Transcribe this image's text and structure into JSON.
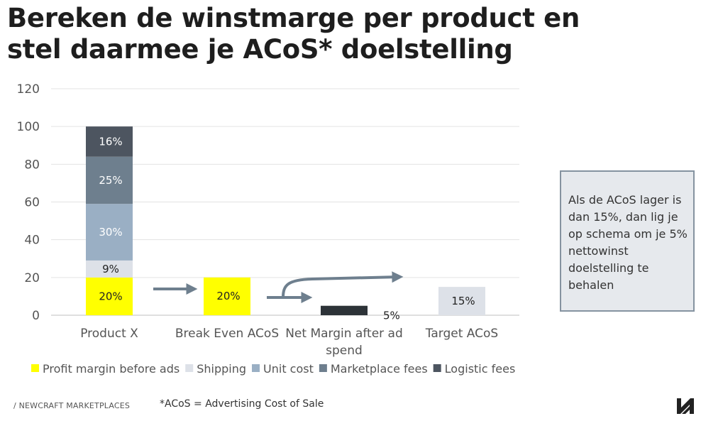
{
  "slide": {
    "title_line1": "Bereken de winstmarge per product en",
    "title_line2": "stel daarmee je ACoS* doelstelling",
    "note": "Als de ACoS lager is dan 15%, dan lig je op schema om je 5% nettowinst doelstelling te behalen",
    "footer_brand": "/ NEWCRAFT MARKETPLACES",
    "footnote": "*ACoS = Advertising Cost of Sale",
    "logo_icon": "newcraft-logo-icon"
  },
  "chart_data": {
    "type": "bar",
    "stacked": true,
    "categories": [
      "Product X",
      "Break Even ACoS",
      "Net Margin after ad spend",
      "Target ACoS"
    ],
    "category_lines": [
      [
        "Product X"
      ],
      [
        "Break Even ACoS"
      ],
      [
        "Net Margin after ad",
        "spend"
      ],
      [
        "Target ACoS"
      ]
    ],
    "y_ticks": [
      0,
      20,
      40,
      60,
      80,
      100,
      120
    ],
    "ylim": [
      0,
      120
    ],
    "grid": true,
    "legend_position": "bottom",
    "legend": [
      {
        "name": "Profit margin before ads",
        "color": "#ffff00"
      },
      {
        "name": "Shipping",
        "color": "#dde1e8"
      },
      {
        "name": "Unit cost",
        "color": "#9aafc4"
      },
      {
        "name": "Marketplace fees",
        "color": "#6e7f8e"
      },
      {
        "name": "Logistic fees",
        "color": "#4d5560"
      }
    ],
    "bars": [
      {
        "category": 0,
        "segments": [
          {
            "series": "Profit margin before ads",
            "value": 20,
            "label": "20%",
            "color": "#ffff00",
            "text_color": "#222222"
          },
          {
            "series": "Shipping",
            "value": 9,
            "label": "9%",
            "color": "#dde1e8",
            "text_color": "#222222"
          },
          {
            "series": "Unit cost",
            "value": 30,
            "label": "30%",
            "color": "#9aafc4",
            "text_color": "#ffffff"
          },
          {
            "series": "Marketplace fees",
            "value": 25,
            "label": "25%",
            "color": "#6e7f8e",
            "text_color": "#ffffff"
          },
          {
            "series": "Logistic fees",
            "value": 16,
            "label": "16%",
            "color": "#4d5560",
            "text_color": "#ffffff"
          }
        ]
      },
      {
        "category": 1,
        "segments": [
          {
            "series": "Break Even ACoS",
            "value": 20,
            "label": "20%",
            "color": "#ffff00",
            "text_color": "#222222",
            "label_pos": "upper"
          }
        ]
      },
      {
        "category": 2,
        "segments": [
          {
            "series": "Net Margin after ad spend",
            "value": 5,
            "label": "5%",
            "color": "#2d3338",
            "text_color": "#222222",
            "label_pos": "right"
          }
        ]
      },
      {
        "category": 3,
        "segments": [
          {
            "series": "Target ACoS",
            "value": 15,
            "label": "15%",
            "color": "#dde1e8",
            "text_color": "#222222"
          }
        ]
      }
    ],
    "arrow_color": "#6e7f8e"
  }
}
